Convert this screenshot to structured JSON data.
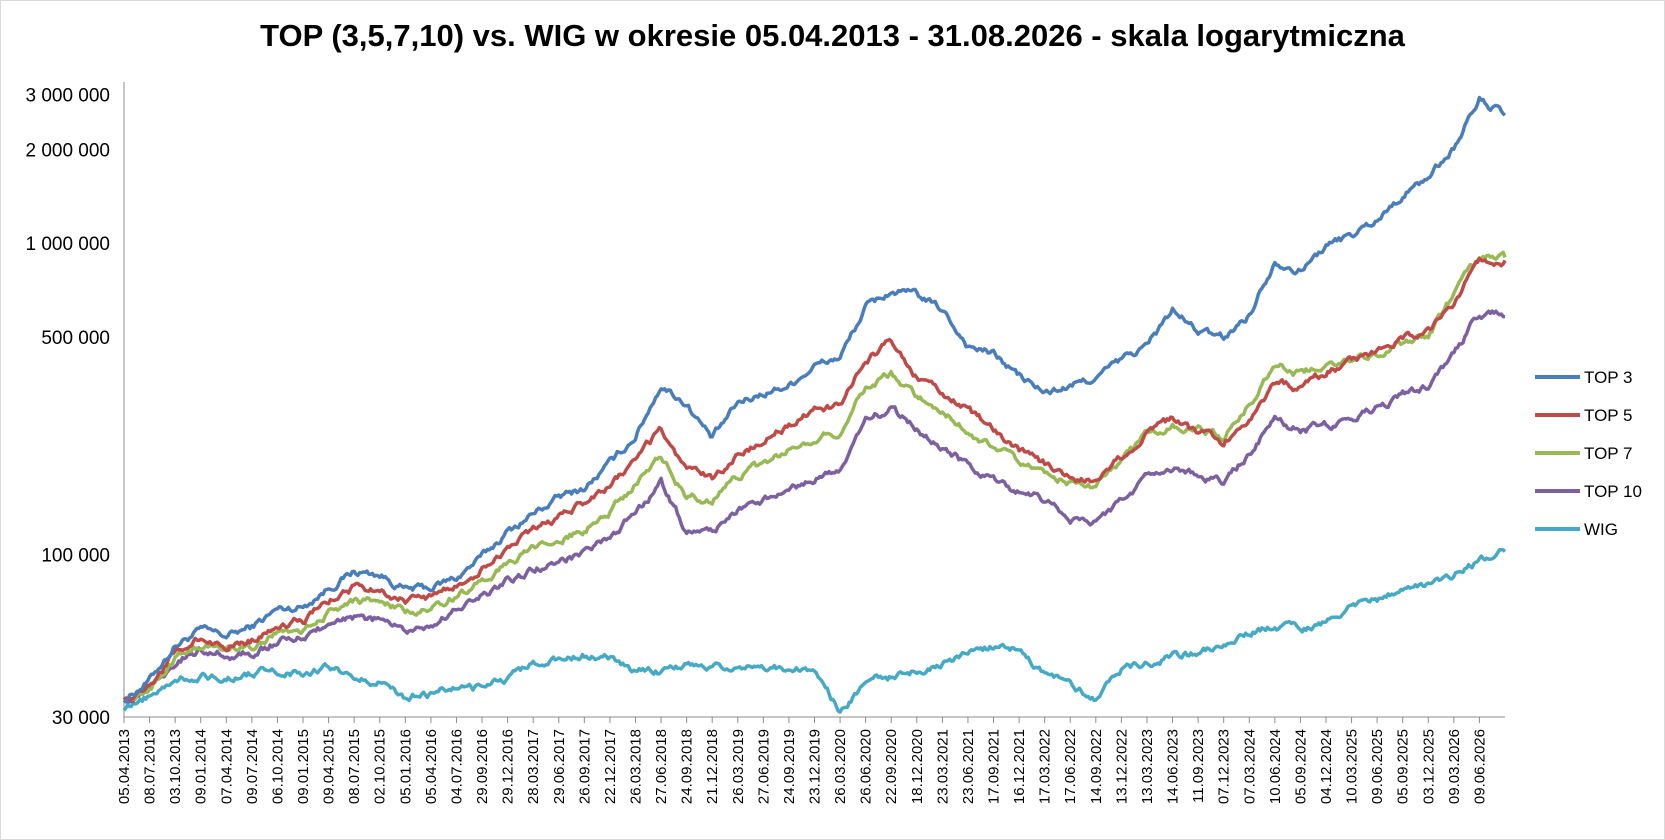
{
  "chart_data": {
    "type": "line",
    "title": "TOP (3,5,7,10) vs. WIG w okresie 05.04.2013 - 31.08.2026 - skala logarytmiczna",
    "y_scale": "log",
    "ylim": [
      30000,
      3200000
    ],
    "grid": false,
    "legend_position": "right",
    "y_ticks": [
      {
        "value": 3000000,
        "label": "3 000 000"
      },
      {
        "value": 2000000,
        "label": "2 000 000"
      },
      {
        "value": 1000000,
        "label": "1 000 000"
      },
      {
        "value": 500000,
        "label": "500 000"
      },
      {
        "value": 100000,
        "label": "100 000"
      },
      {
        "value": 30000,
        "label": "30 000"
      }
    ],
    "x_tick_labels": [
      "05.04.2013",
      "08.07.2013",
      "03.10.2013",
      "09.01.2014",
      "07.04.2014",
      "09.07.2014",
      "06.10.2014",
      "09.01.2015",
      "09.04.2015",
      "08.07.2015",
      "02.10.2015",
      "05.01.2016",
      "05.04.2016",
      "04.07.2016",
      "29.09.2016",
      "29.12.2016",
      "28.03.2017",
      "29.06.2017",
      "26.09.2017",
      "22.12.2017",
      "26.03.2018",
      "27.06.2018",
      "24.09.2018",
      "21.12.2018",
      "26.03.2019",
      "27.06.2019",
      "24.09.2019",
      "23.12.2019",
      "26.03.2020",
      "26.06.2020",
      "22.09.2020",
      "18.12.2020",
      "23.03.2021",
      "23.06.2021",
      "17.09.2021",
      "16.12.2021",
      "17.03.2022",
      "17.06.2022",
      "14.09.2022",
      "13.12.2022",
      "13.03.2023",
      "14.06.2023",
      "11.09.2023",
      "07.12.2023",
      "07.03.2024",
      "10.06.2024",
      "05.09.2024",
      "04.12.2024",
      "10.03.2025",
      "09.06.2025",
      "05.09.2025",
      "03.12.2025",
      "09.03.2026",
      "09.06.2026"
    ],
    "x": [
      "05.04.2013",
      "08.07.2013",
      "03.10.2013",
      "09.01.2014",
      "07.04.2014",
      "09.07.2014",
      "06.10.2014",
      "09.01.2015",
      "09.04.2015",
      "08.07.2015",
      "02.10.2015",
      "05.01.2016",
      "05.04.2016",
      "04.07.2016",
      "29.09.2016",
      "29.12.2016",
      "28.03.2017",
      "29.06.2017",
      "26.09.2017",
      "22.12.2017",
      "26.03.2018",
      "27.06.2018",
      "24.09.2018",
      "21.12.2018",
      "26.03.2019",
      "27.06.2019",
      "24.09.2019",
      "23.12.2019",
      "26.03.2020",
      "26.06.2020",
      "22.09.2020",
      "18.12.2020",
      "23.03.2021",
      "23.06.2021",
      "17.09.2021",
      "16.12.2021",
      "17.03.2022",
      "17.06.2022",
      "14.09.2022",
      "13.12.2022",
      "13.03.2023",
      "14.06.2023",
      "11.09.2023",
      "07.12.2023",
      "07.03.2024",
      "10.06.2024",
      "05.09.2024",
      "04.12.2024",
      "10.03.2025",
      "09.06.2025",
      "05.09.2025",
      "03.12.2025",
      "09.03.2026",
      "09.06.2026",
      "31.08.2026"
    ],
    "series": [
      {
        "name": "TOP 3",
        "color": "#4a7ebb",
        "values": [
          34000,
          39500,
          51000,
          57000,
          54500,
          58500,
          66500,
          68000,
          78000,
          88000,
          86000,
          77000,
          78000,
          84000,
          98000,
          118000,
          135000,
          152000,
          163000,
          195000,
          240000,
          350000,
          305000,
          235000,
          305000,
          330000,
          350000,
          405000,
          430000,
          620000,
          700000,
          680000,
          610000,
          470000,
          440000,
          375000,
          330000,
          345000,
          370000,
          420000,
          470000,
          610000,
          520000,
          495000,
          590000,
          880000,
          820000,
          980000,
          1060000,
          1190000,
          1430000,
          1630000,
          2030000,
          2900000,
          2580000
        ]
      },
      {
        "name": "TOP 5",
        "color": "#be4b48",
        "values": [
          34000,
          38500,
          48000,
          53500,
          51000,
          53000,
          60000,
          61000,
          71000,
          78000,
          77000,
          71000,
          73000,
          79000,
          90000,
          105000,
          118000,
          132000,
          147000,
          165000,
          200000,
          250000,
          185000,
          175000,
          210000,
          230000,
          260000,
          290000,
          300000,
          420000,
          480000,
          370000,
          330000,
          290000,
          250000,
          215000,
          195000,
          180000,
          172000,
          205000,
          250000,
          270000,
          245000,
          230000,
          280000,
          350000,
          345000,
          385000,
          415000,
          450000,
          500000,
          520000,
          640000,
          880000,
          880000
        ]
      },
      {
        "name": "TOP 7",
        "color": "#98b954",
        "values": [
          34000,
          37500,
          46000,
          51000,
          49500,
          51000,
          56000,
          57000,
          65000,
          71000,
          70000,
          65000,
          67000,
          74000,
          82000,
          93000,
          103000,
          111000,
          120000,
          138000,
          168000,
          210000,
          152000,
          150000,
          178000,
          195000,
          215000,
          240000,
          245000,
          350000,
          380000,
          320000,
          290000,
          250000,
          220000,
          198000,
          182000,
          172000,
          162000,
          200000,
          245000,
          260000,
          250000,
          240000,
          305000,
          410000,
          380000,
          410000,
          430000,
          440000,
          480000,
          510000,
          680000,
          900000,
          900000
        ]
      },
      {
        "name": "TOP 10",
        "color": "#7d60a0",
        "values": [
          34000,
          37000,
          45000,
          50000,
          47500,
          48000,
          52500,
          54000,
          59500,
          62000,
          61500,
          57000,
          59000,
          66000,
          73000,
          82000,
          89000,
          95000,
          100000,
          112000,
          135000,
          170000,
          118000,
          117000,
          138000,
          148000,
          158000,
          175000,
          185000,
          265000,
          295000,
          250000,
          220000,
          193000,
          172000,
          158000,
          150000,
          130000,
          126000,
          150000,
          178000,
          190000,
          178000,
          170000,
          210000,
          270000,
          250000,
          260000,
          270000,
          295000,
          325000,
          345000,
          440000,
          600000,
          580000
        ]
      },
      {
        "name": "WIG",
        "color": "#46aac5",
        "values": [
          31500,
          35000,
          39500,
          41000,
          40000,
          41500,
          42500,
          41500,
          43000,
          40500,
          39000,
          35000,
          35500,
          37500,
          37000,
          40000,
          44500,
          45500,
          47500,
          46000,
          42500,
          42000,
          43500,
          44500,
          43500,
          42500,
          43500,
          41500,
          31000,
          39500,
          40000,
          42000,
          44500,
          48000,
          50500,
          49000,
          41000,
          38500,
          34500,
          43000,
          44500,
          47500,
          47500,
          52000,
          56500,
          58000,
          57000,
          61000,
          67000,
          71000,
          76000,
          80000,
          86000,
          95000,
          102000
        ]
      }
    ]
  }
}
